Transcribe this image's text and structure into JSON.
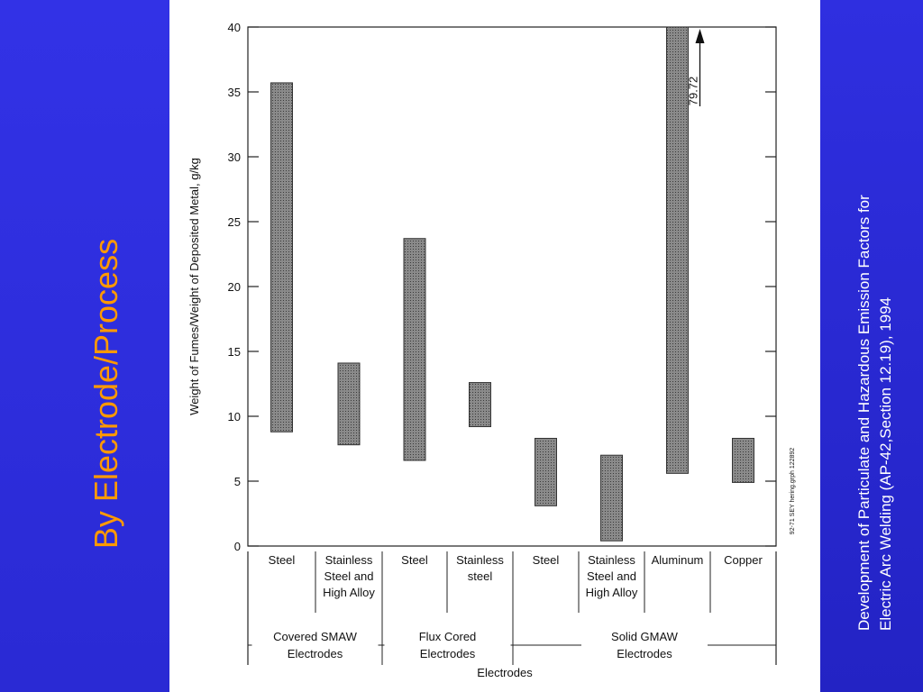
{
  "slide": {
    "title": "By Electrode/Process",
    "citation_line1": "Development of Particulate and Hazardous Emission Factors for",
    "citation_line2": "Electric Arc Welding (AP-42,Section 12.19), 1994"
  },
  "colors": {
    "sidebar": "#2f2fe0",
    "title": "#ff9900",
    "bar_fill": "#777777"
  },
  "chart_data": {
    "type": "bar",
    "subtype": "floating-range",
    "ylabel": "Weight of Fumes/Weight of Deposited Metal, g/kg",
    "xlabel": "Electrodes",
    "ylim": [
      0,
      40
    ],
    "yticks": [
      0,
      5,
      10,
      15,
      20,
      25,
      30,
      35,
      40
    ],
    "grid": false,
    "categories": [
      {
        "label_lines": [
          "Steel"
        ],
        "low": 8.8,
        "high": 35.7
      },
      {
        "label_lines": [
          "Stainless",
          "Steel and",
          "High Alloy"
        ],
        "low": 7.8,
        "high": 14.1
      },
      {
        "label_lines": [
          "Steel"
        ],
        "low": 6.6,
        "high": 23.7
      },
      {
        "label_lines": [
          "Stainless",
          "steel"
        ],
        "low": 9.2,
        "high": 12.6
      },
      {
        "label_lines": [
          "Steel"
        ],
        "low": 3.1,
        "high": 8.3
      },
      {
        "label_lines": [
          "Stainless",
          "Steel and",
          "High Alloy"
        ],
        "low": 0.4,
        "high": 7.0
      },
      {
        "label_lines": [
          "Aluminum"
        ],
        "low": 5.6,
        "high": 79.72
      },
      {
        "label_lines": [
          "Copper"
        ],
        "low": 4.9,
        "high": 8.3
      }
    ],
    "groups": [
      {
        "label_lines": [
          "Covered SMAW",
          "Electrodes"
        ],
        "from": 0,
        "to": 1
      },
      {
        "label_lines": [
          "Flux Cored",
          "Electrodes"
        ],
        "from": 2,
        "to": 3
      },
      {
        "label_lines": [
          "Solid GMAW",
          "Electrodes"
        ],
        "from": 4,
        "to": 7
      }
    ],
    "annotation": {
      "text": "79.72",
      "category_index": 6
    },
    "source_note": "92-71 SEY hering.grph 122892"
  }
}
